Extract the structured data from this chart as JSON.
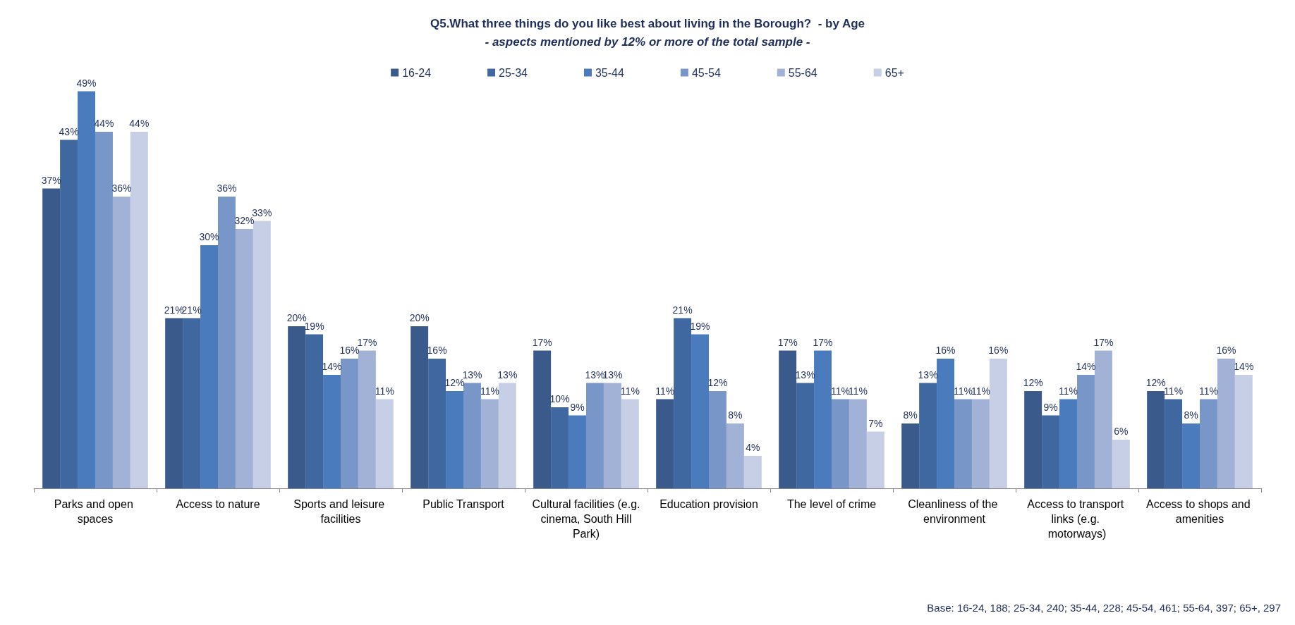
{
  "chart_data": {
    "type": "bar",
    "title": "Q5.What three things do you like best about living in the Borough?  - by Age",
    "subtitle": "- aspects mentioned by 12% or more of the total sample -",
    "categories": [
      "Parks and open spaces",
      "Access to nature",
      "Sports and leisure facilities",
      "Public Transport",
      "Cultural facilities (e.g. cinema, South Hill Park)",
      "Education provision",
      "The level of crime",
      "Cleanliness of the environment",
      "Access to transport links (e.g. motorways)",
      "Access to shops and amenities"
    ],
    "series": [
      {
        "name": "16-24",
        "color": "#3a5a8c",
        "values": [
          37,
          21,
          20,
          20,
          17,
          11,
          17,
          8,
          12,
          12
        ],
        "value_labels": [
          "37%",
          "21%",
          "20%",
          "20%",
          "17%",
          "11%",
          "17%",
          "8%",
          "12%",
          "12%"
        ]
      },
      {
        "name": "25-34",
        "color": "#3f67a0",
        "values": [
          43,
          21,
          19,
          16,
          10,
          21,
          13,
          13,
          9,
          11
        ],
        "value_labels": [
          "43%",
          "21%",
          "19%",
          "16%",
          "10%",
          "21%",
          "13%",
          "13%",
          "9%",
          "11%"
        ]
      },
      {
        "name": "35-44",
        "color": "#4a7bbd",
        "values": [
          49,
          30,
          14,
          12,
          9,
          19,
          17,
          16,
          11,
          8
        ],
        "value_labels": [
          "49%",
          "30%",
          "14%",
          "12%",
          "9%",
          "19%",
          "17%",
          "16%",
          "11%",
          "8%"
        ]
      },
      {
        "name": "45-54",
        "color": "#7896c8",
        "values": [
          44,
          36,
          16,
          13,
          13,
          12,
          11,
          11,
          14,
          11
        ],
        "value_labels": [
          "44%",
          "36%",
          "16%",
          "13%",
          "13%",
          "12%",
          "11%",
          "11%",
          "14%",
          "11%"
        ]
      },
      {
        "name": "55-64",
        "color": "#a2b2d6",
        "values": [
          36,
          32,
          17,
          11,
          13,
          8,
          11,
          11,
          17,
          16
        ],
        "value_labels": [
          "36%",
          "32%",
          "17%",
          "11%",
          "13%",
          "8%",
          "11%",
          "11%",
          "17%",
          "16%"
        ]
      },
      {
        "name": "65+",
        "color": "#c6cfe5",
        "values": [
          44,
          33,
          11,
          13,
          11,
          4,
          7,
          16,
          6,
          14
        ],
        "value_labels": [
          "44%",
          "33%",
          "11%",
          "13%",
          "11%",
          "4%",
          "7%",
          "16%",
          "6%",
          "14%"
        ]
      }
    ],
    "legend": "top",
    "grid": false,
    "annotations": [
      "Base: 16-24, 188; 25-34, 240; 35-44, 228; 45-54, 461; 55-64, 397; 65+, 297"
    ]
  }
}
